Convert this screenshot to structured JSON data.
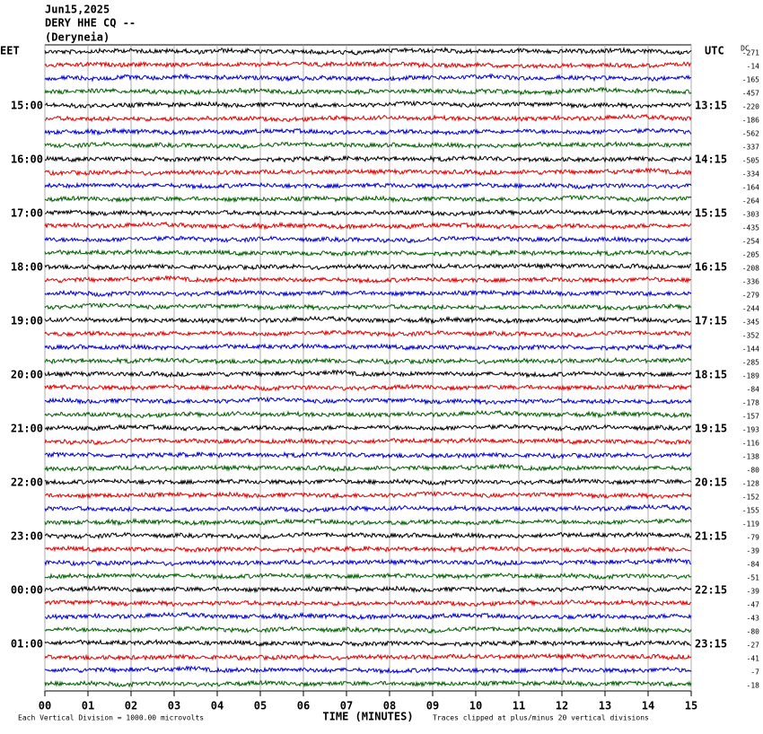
{
  "header": {
    "date": "Jun15,2025",
    "station": "DERY HHE CQ --",
    "location": "(Deryneia)"
  },
  "left_axis_title": "EET",
  "right_axis_title": "UTC",
  "dc_title": "DC",
  "colors": [
    "#000000",
    "#e00000",
    "#0000d0",
    "#006000"
  ],
  "rows": [
    {
      "dc": "-271"
    },
    {
      "dc": "-14"
    },
    {
      "dc": "-165"
    },
    {
      "dc": "-457"
    },
    {
      "dc": "-220",
      "eet": "15:00",
      "utc": "13:15"
    },
    {
      "dc": "-186"
    },
    {
      "dc": "-562"
    },
    {
      "dc": "-337"
    },
    {
      "dc": "-505",
      "eet": "16:00",
      "utc": "14:15"
    },
    {
      "dc": "-334"
    },
    {
      "dc": "-164"
    },
    {
      "dc": "-264"
    },
    {
      "dc": "-303",
      "eet": "17:00",
      "utc": "15:15"
    },
    {
      "dc": "-435"
    },
    {
      "dc": "-254"
    },
    {
      "dc": "-205"
    },
    {
      "dc": "-208",
      "eet": "18:00",
      "utc": "16:15"
    },
    {
      "dc": "-336"
    },
    {
      "dc": "-279"
    },
    {
      "dc": "-244"
    },
    {
      "dc": "-345",
      "eet": "19:00",
      "utc": "17:15"
    },
    {
      "dc": "-352"
    },
    {
      "dc": "-144"
    },
    {
      "dc": "-285"
    },
    {
      "dc": "-189",
      "eet": "20:00",
      "utc": "18:15"
    },
    {
      "dc": "-84"
    },
    {
      "dc": "-178"
    },
    {
      "dc": "-157"
    },
    {
      "dc": "-193",
      "eet": "21:00",
      "utc": "19:15"
    },
    {
      "dc": "-116"
    },
    {
      "dc": "-138"
    },
    {
      "dc": "-80"
    },
    {
      "dc": "-128",
      "eet": "22:00",
      "utc": "20:15"
    },
    {
      "dc": "-152"
    },
    {
      "dc": "-155"
    },
    {
      "dc": "-119"
    },
    {
      "dc": "-79",
      "eet": "23:00",
      "utc": "21:15"
    },
    {
      "dc": "-39"
    },
    {
      "dc": "-84"
    },
    {
      "dc": "-51"
    },
    {
      "dc": "-39",
      "eet": "00:00",
      "utc": "22:15"
    },
    {
      "dc": "-47"
    },
    {
      "dc": "-43"
    },
    {
      "dc": "-80"
    },
    {
      "dc": "-27",
      "eet": "01:00",
      "utc": "23:15"
    },
    {
      "dc": "-41"
    },
    {
      "dc": "-7"
    },
    {
      "dc": "-18"
    }
  ],
  "xticks": [
    "00",
    "01",
    "02",
    "03",
    "04",
    "05",
    "06",
    "07",
    "08",
    "09",
    "10",
    "11",
    "12",
    "13",
    "14",
    "15"
  ],
  "xlabel": "TIME (MINUTES)",
  "scale_note": "Each Vertical Division = 1000.00 microvolts",
  "clip_note": "Traces clipped at plus/minus 20 vertical divisions"
}
